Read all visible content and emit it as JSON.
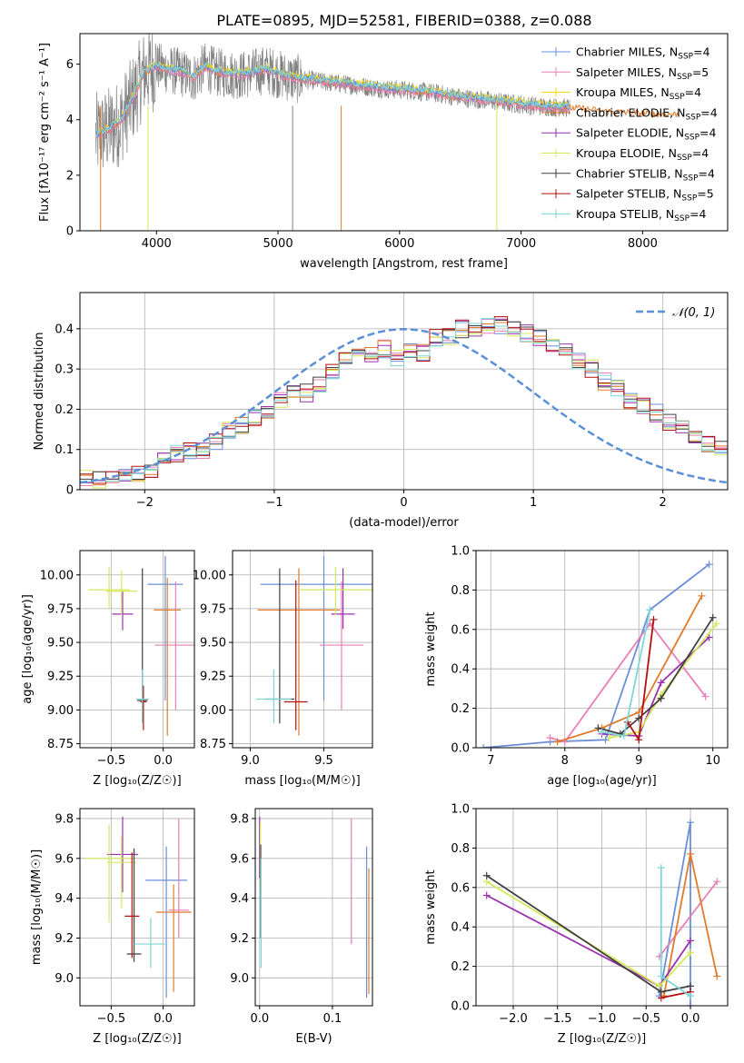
{
  "figure": {
    "title": "PLATE=0895, MJD=52581, FIBERID=0388, z=0.088"
  },
  "colors": {
    "chabrier_miles": "#6a8fd8",
    "salpeter_miles": "#e87fb8",
    "kroupa_miles": "#ffd200",
    "chabrier_elodie": "#e07b2a",
    "salpeter_elodie": "#9b30b0",
    "kroupa_elodie": "#d4e85a",
    "chabrier_stelib": "#404040",
    "salpeter_stelib": "#b01010",
    "kroupa_stelib": "#7fd6d6",
    "data": "#808080",
    "normal": "#5b8fd6"
  },
  "chart_data": [
    {
      "id": "spectrum",
      "type": "line",
      "xlabel": "wavelength [Angstrom, rest frame]",
      "ylabel": "Flux [fλ10⁻¹⁷ erg cm⁻² s⁻¹ A⁻¹]",
      "xlim": [
        3370,
        8700
      ],
      "ylim": [
        0,
        7.1
      ],
      "xticks": [
        4000,
        5000,
        6000,
        7000,
        8000
      ],
      "yticks": [
        0,
        2,
        4,
        6
      ],
      "legend_position": "right",
      "legend": [
        {
          "label": "Chabrier MILES, N",
          "sub": "SSP",
          "tail": "=4",
          "color_key": "chabrier_miles"
        },
        {
          "label": "Salpeter MILES, N",
          "sub": "SSP",
          "tail": "=5",
          "color_key": "salpeter_miles"
        },
        {
          "label": "Kroupa MILES, N",
          "sub": "SSP",
          "tail": "=4",
          "color_key": "kroupa_miles"
        },
        {
          "label": "Chabrier ELODIE, N",
          "sub": "SSP",
          "tail": "=4",
          "color_key": "chabrier_elodie"
        },
        {
          "label": "Salpeter ELODIE, N",
          "sub": "SSP",
          "tail": "=4",
          "color_key": "salpeter_elodie"
        },
        {
          "label": "Kroupa ELODIE, N",
          "sub": "SSP",
          "tail": "=4",
          "color_key": "kroupa_elodie"
        },
        {
          "label": "Chabrier STELIB, N",
          "sub": "SSP",
          "tail": "=4",
          "color_key": "chabrier_stelib"
        },
        {
          "label": "Salpeter STELIB, N",
          "sub": "SSP",
          "tail": "=5",
          "color_key": "salpeter_stelib"
        },
        {
          "label": "Kroupa STELIB, N",
          "sub": "SSP",
          "tail": "=4",
          "color_key": "kroupa_stelib"
        }
      ],
      "data_range": [
        3500,
        7400
      ],
      "model_curve": {
        "x": [
          3500,
          3600,
          3700,
          3800,
          3900,
          4000,
          4100,
          4200,
          4300,
          4400,
          4500,
          4700,
          4900,
          5100,
          5300,
          5500,
          5700,
          5900,
          6100,
          6300,
          6500,
          6700,
          6900,
          7100,
          7300,
          7500,
          7700,
          7900,
          8100,
          8300
        ],
        "y": [
          3.4,
          3.6,
          3.9,
          4.7,
          5.7,
          5.9,
          5.8,
          5.7,
          5.5,
          5.9,
          5.7,
          5.6,
          5.8,
          5.5,
          5.4,
          5.3,
          5.2,
          5.1,
          5.05,
          4.95,
          4.8,
          4.7,
          4.6,
          4.5,
          4.45,
          4.4,
          4.3,
          4.25,
          4.2,
          4.2
        ]
      }
    },
    {
      "id": "residuals",
      "type": "histogram",
      "xlabel": "(data-model)/error",
      "ylabel": "Normed distribution",
      "xlim": [
        -2.5,
        2.5
      ],
      "ylim": [
        0,
        0.49
      ],
      "xticks": [
        -2,
        -1,
        0,
        1,
        2
      ],
      "yticks": [
        0,
        0.1,
        0.2,
        0.3,
        0.4
      ],
      "legend": "𝒩(0, 1)",
      "legend_position": "top-right",
      "bin_width": 0.1,
      "bin_start": -2.5,
      "values": [
        0.03,
        0.025,
        0.028,
        0.032,
        0.042,
        0.05,
        0.07,
        0.09,
        0.095,
        0.1,
        0.12,
        0.145,
        0.16,
        0.18,
        0.2,
        0.22,
        0.24,
        0.24,
        0.26,
        0.29,
        0.33,
        0.34,
        0.34,
        0.35,
        0.33,
        0.34,
        0.34,
        0.38,
        0.38,
        0.4,
        0.4,
        0.41,
        0.41,
        0.4,
        0.39,
        0.38,
        0.36,
        0.34,
        0.32,
        0.3,
        0.27,
        0.25,
        0.22,
        0.21,
        0.19,
        0.17,
        0.15,
        0.13,
        0.11,
        0.1,
        0.09,
        0.08,
        0.07,
        0.06,
        0.05,
        0.045,
        0.04,
        0.035,
        0.03,
        0.028,
        0.025
      ]
    },
    {
      "id": "age_vs_Z",
      "type": "errorbar",
      "xlabel": "Z [log₁₀(Z/Z☉)]",
      "ylabel": "age  [log₁₀(age/yr)]",
      "xlim": [
        -0.8,
        0.3
      ],
      "ylim": [
        8.72,
        10.18
      ],
      "xticks": [
        -0.5,
        0.0
      ],
      "xtick_labels": [
        "−0.5",
        "0.0"
      ],
      "yticks": [
        8.75,
        9.0,
        9.25,
        9.5,
        9.75,
        10.0
      ],
      "ytick_labels": [
        "8.75",
        "9.00",
        "9.25",
        "9.50",
        "9.75",
        "10.00"
      ],
      "points": [
        {
          "x": 0.02,
          "xerr": 0.17,
          "y": 9.93,
          "y0": 9.07,
          "y1": 10.14,
          "c": "chabrier_miles"
        },
        {
          "x": 0.12,
          "xerr": 0.2,
          "y": 9.48,
          "y0": 9.0,
          "y1": 9.95,
          "c": "salpeter_miles"
        },
        {
          "x": 0.04,
          "xerr": 0.13,
          "y": 9.74,
          "y0": 8.81,
          "y1": 9.98,
          "c": "chabrier_elodie"
        },
        {
          "x": -0.39,
          "xerr": 0.1,
          "y": 9.71,
          "y0": 9.59,
          "y1": 9.88,
          "c": "salpeter_elodie"
        },
        {
          "x": -0.4,
          "xerr": 0.15,
          "y": 9.88,
          "y0": 9.7,
          "y1": 10.03,
          "c": "kroupa_elodie"
        },
        {
          "x": -0.52,
          "xerr": 0.2,
          "y": 9.89,
          "y0": 9.75,
          "y1": 10.06,
          "c": "kroupa_elodie"
        },
        {
          "x": -0.2,
          "xerr": 0.05,
          "y": 9.07,
          "y0": 8.91,
          "y1": 10.05,
          "c": "chabrier_stelib"
        },
        {
          "x": -0.19,
          "xerr": 0.03,
          "y": 9.06,
          "y0": 8.85,
          "y1": 9.18,
          "c": "salpeter_stelib"
        },
        {
          "x": -0.2,
          "xerr": 0.06,
          "y": 9.08,
          "y0": 8.9,
          "y1": 9.3,
          "c": "kroupa_stelib"
        }
      ]
    },
    {
      "id": "age_vs_mass",
      "type": "errorbar",
      "xlabel": "mass [log₁₀(M/M☉)]",
      "ylabel": "",
      "xlim": [
        8.88,
        9.83
      ],
      "ylim": [
        8.72,
        10.18
      ],
      "xticks": [
        9.0,
        9.5
      ],
      "xtick_labels": [
        "9.0",
        "9.5"
      ],
      "yticks": [
        8.75,
        9.0,
        9.25,
        9.5,
        9.75,
        10.0
      ],
      "ytick_labels": [
        "8.75",
        "9.00",
        "9.25",
        "9.50",
        "9.75",
        "10.00"
      ],
      "points": [
        {
          "x": 9.5,
          "xerr": 0.43,
          "y": 9.93,
          "y0": 9.07,
          "y1": 10.14,
          "c": "chabrier_miles"
        },
        {
          "x": 9.62,
          "xerr": 0.15,
          "y": 9.48,
          "y0": 9.0,
          "y1": 9.95,
          "c": "salpeter_miles"
        },
        {
          "x": 9.33,
          "xerr": 0.28,
          "y": 9.74,
          "y0": 8.81,
          "y1": 10.05,
          "c": "chabrier_elodie"
        },
        {
          "x": 9.63,
          "xerr": 0.08,
          "y": 9.71,
          "y0": 9.6,
          "y1": 10.05,
          "c": "salpeter_elodie"
        },
        {
          "x": 9.58,
          "xerr": 0.25,
          "y": 9.89,
          "y0": 9.7,
          "y1": 10.06,
          "c": "kroupa_elodie"
        },
        {
          "x": 9.2,
          "xerr": 0.1,
          "y": 9.08,
          "y0": 8.9,
          "y1": 10.05,
          "c": "chabrier_stelib"
        },
        {
          "x": 9.31,
          "xerr": 0.08,
          "y": 9.06,
          "y0": 8.85,
          "y1": 9.96,
          "c": "salpeter_stelib"
        },
        {
          "x": 9.16,
          "xerr": 0.12,
          "y": 9.08,
          "y0": 8.9,
          "y1": 9.3,
          "c": "kroupa_stelib"
        }
      ]
    },
    {
      "id": "weight_vs_age",
      "type": "line",
      "xlabel": "age  [log₁₀(age/yr)]",
      "ylabel": "mass weight",
      "xlim": [
        6.8,
        10.2
      ],
      "ylim": [
        0,
        1.0
      ],
      "xticks": [
        7,
        8,
        9,
        10
      ],
      "yticks": [
        0,
        0.2,
        0.4,
        0.6,
        0.8,
        1.0
      ],
      "ytick_labels": [
        "0.0",
        "0.2",
        "0.4",
        "0.6",
        "0.8",
        "1.0"
      ],
      "series": [
        {
          "c": "chabrier_miles",
          "x": [
            6.9,
            7.8,
            8.55,
            9.15,
            9.95
          ],
          "y": [
            0.0,
            0.03,
            0.04,
            0.7,
            0.93
          ]
        },
        {
          "c": "salpeter_miles",
          "x": [
            7.8,
            8.0,
            9.15,
            9.9
          ],
          "y": [
            0.05,
            0.03,
            0.63,
            0.26
          ]
        },
        {
          "c": "chabrier_elodie",
          "x": [
            7.9,
            8.5,
            9.0,
            9.85
          ],
          "y": [
            0.03,
            0.1,
            0.18,
            0.77
          ]
        },
        {
          "c": "salpeter_elodie",
          "x": [
            8.5,
            9.0,
            9.3,
            9.95
          ],
          "y": [
            0.07,
            0.06,
            0.33,
            0.56
          ]
        },
        {
          "c": "kroupa_elodie",
          "x": [
            8.6,
            9.0,
            9.3,
            10.05
          ],
          "y": [
            0.05,
            0.08,
            0.27,
            0.63
          ]
        },
        {
          "c": "chabrier_stelib",
          "x": [
            8.45,
            8.75,
            9.0,
            9.3,
            10.0
          ],
          "y": [
            0.1,
            0.07,
            0.15,
            0.25,
            0.66
          ]
        },
        {
          "c": "salpeter_stelib",
          "x": [
            8.85,
            9.0,
            9.2
          ],
          "y": [
            0.13,
            0.04,
            0.65
          ]
        },
        {
          "c": "kroupa_stelib",
          "x": [
            8.5,
            8.8,
            9.15
          ],
          "y": [
            0.08,
            0.06,
            0.7
          ]
        }
      ]
    },
    {
      "id": "mass_vs_Z",
      "type": "errorbar",
      "xlabel": "Z [log₁₀(Z/Z☉)]",
      "ylabel": "mass [log₁₀(M/M☉)]",
      "xlim": [
        -0.8,
        0.3
      ],
      "ylim": [
        8.86,
        9.85
      ],
      "xticks": [
        -0.5,
        0.0
      ],
      "xtick_labels": [
        "−0.5",
        "0.0"
      ],
      "yticks": [
        9.0,
        9.2,
        9.4,
        9.6,
        9.8
      ],
      "ytick_labels": [
        "9.0",
        "9.2",
        "9.4",
        "9.6",
        "9.8"
      ],
      "points": [
        {
          "x": 0.03,
          "xerr": 0.2,
          "y": 9.49,
          "y0": 8.9,
          "y1": 9.66,
          "c": "chabrier_miles"
        },
        {
          "x": 0.15,
          "xerr": 0.1,
          "y": 9.34,
          "y0": 9.2,
          "y1": 9.8,
          "c": "salpeter_miles"
        },
        {
          "x": 0.1,
          "xerr": 0.17,
          "y": 9.33,
          "y0": 8.93,
          "y1": 9.47,
          "c": "chabrier_elodie"
        },
        {
          "x": -0.39,
          "xerr": 0.15,
          "y": 9.62,
          "y0": 9.43,
          "y1": 9.81,
          "c": "salpeter_elodie"
        },
        {
          "x": -0.52,
          "xerr": 0.23,
          "y": 9.6,
          "y0": 9.28,
          "y1": 9.77,
          "c": "kroupa_elodie"
        },
        {
          "x": -0.4,
          "xerr": 0.14,
          "y": 9.58,
          "y0": 9.35,
          "y1": 9.71,
          "c": "kroupa_elodie"
        },
        {
          "x": -0.28,
          "xerr": 0.07,
          "y": 9.12,
          "y0": 9.08,
          "y1": 9.65,
          "c": "chabrier_stelib"
        },
        {
          "x": -0.3,
          "xerr": 0.07,
          "y": 9.31,
          "y0": 9.1,
          "y1": 9.63,
          "c": "salpeter_stelib"
        },
        {
          "x": -0.12,
          "xerr": 0.16,
          "y": 9.17,
          "y0": 9.05,
          "y1": 9.3,
          "c": "kroupa_stelib"
        }
      ]
    },
    {
      "id": "mass_vs_ebv",
      "type": "errorbar",
      "xlabel": "E(B-V)",
      "ylabel": "",
      "xlim": [
        -0.006,
        0.155
      ],
      "ylim": [
        8.86,
        9.85
      ],
      "xticks": [
        0.0,
        0.1
      ],
      "xtick_labels": [
        "0.0",
        "0.1"
      ],
      "yticks": [
        9.0,
        9.2,
        9.4,
        9.6,
        9.8
      ],
      "ytick_labels": [
        "9.0",
        "9.2",
        "9.4",
        "9.6",
        "9.8"
      ],
      "points": [
        {
          "x": 0.0,
          "y": 9.65,
          "y0": 9.5,
          "y1": 9.81,
          "c": "salpeter_elodie"
        },
        {
          "x": 0.001,
          "y": 9.6,
          "y0": 9.45,
          "y1": 9.78,
          "c": "kroupa_elodie"
        },
        {
          "x": 0.0015,
          "y": 9.55,
          "y0": 9.2,
          "y1": 9.67,
          "c": "chabrier_stelib"
        },
        {
          "x": 0.002,
          "y": 9.45,
          "y0": 9.05,
          "y1": 9.6,
          "c": "kroupa_stelib"
        },
        {
          "x": 0.126,
          "y": 9.48,
          "y0": 9.17,
          "y1": 9.8,
          "c": "salpeter_miles"
        },
        {
          "x": 0.147,
          "y": 9.3,
          "y0": 8.9,
          "y1": 9.66,
          "c": "chabrier_miles"
        },
        {
          "x": 0.15,
          "y": 9.25,
          "y0": 8.92,
          "y1": 9.55,
          "c": "chabrier_elodie"
        }
      ]
    },
    {
      "id": "weight_vs_Z",
      "type": "line",
      "xlabel": "Z [log₁₀(Z/Z☉)]",
      "ylabel": "mass weight",
      "xlim": [
        -2.42,
        0.42
      ],
      "ylim": [
        0,
        1.0
      ],
      "xticks": [
        -2.0,
        -1.5,
        -1.0,
        -0.5,
        0.0
      ],
      "xtick_labels": [
        "−2.0",
        "−1.5",
        "−1.0",
        "−0.5",
        "0.0"
      ],
      "yticks": [
        0,
        0.2,
        0.4,
        0.6,
        0.8,
        1.0
      ],
      "ytick_labels": [
        "0.0",
        "0.2",
        "0.4",
        "0.6",
        "0.8",
        "1.0"
      ],
      "series": [
        {
          "c": "chabrier_miles",
          "x": [
            -0.35,
            0.0,
            0.0,
            0.0
          ],
          "y": [
            0.05,
            0.93,
            0.1,
            0.0
          ]
        },
        {
          "c": "salpeter_miles",
          "x": [
            -0.35,
            0.3
          ],
          "y": [
            0.25,
            0.63
          ]
        },
        {
          "c": "chabrier_elodie",
          "x": [
            -0.3,
            0.0,
            0.3
          ],
          "y": [
            0.05,
            0.77,
            0.15
          ]
        },
        {
          "c": "salpeter_elodie",
          "x": [
            -2.3,
            -0.35,
            0.0
          ],
          "y": [
            0.56,
            0.1,
            0.33
          ]
        },
        {
          "c": "kroupa_elodie",
          "x": [
            -2.3,
            -0.35,
            0.0
          ],
          "y": [
            0.63,
            0.1,
            0.27
          ]
        },
        {
          "c": "chabrier_stelib",
          "x": [
            -2.3,
            -0.33,
            0.0
          ],
          "y": [
            0.66,
            0.07,
            0.1
          ]
        },
        {
          "c": "salpeter_stelib",
          "x": [
            -0.33,
            0.0
          ],
          "y": [
            0.04,
            0.07
          ]
        },
        {
          "c": "kroupa_stelib",
          "x": [
            -0.33,
            -0.33,
            0.0
          ],
          "y": [
            0.7,
            0.15,
            0.05
          ]
        }
      ]
    }
  ]
}
